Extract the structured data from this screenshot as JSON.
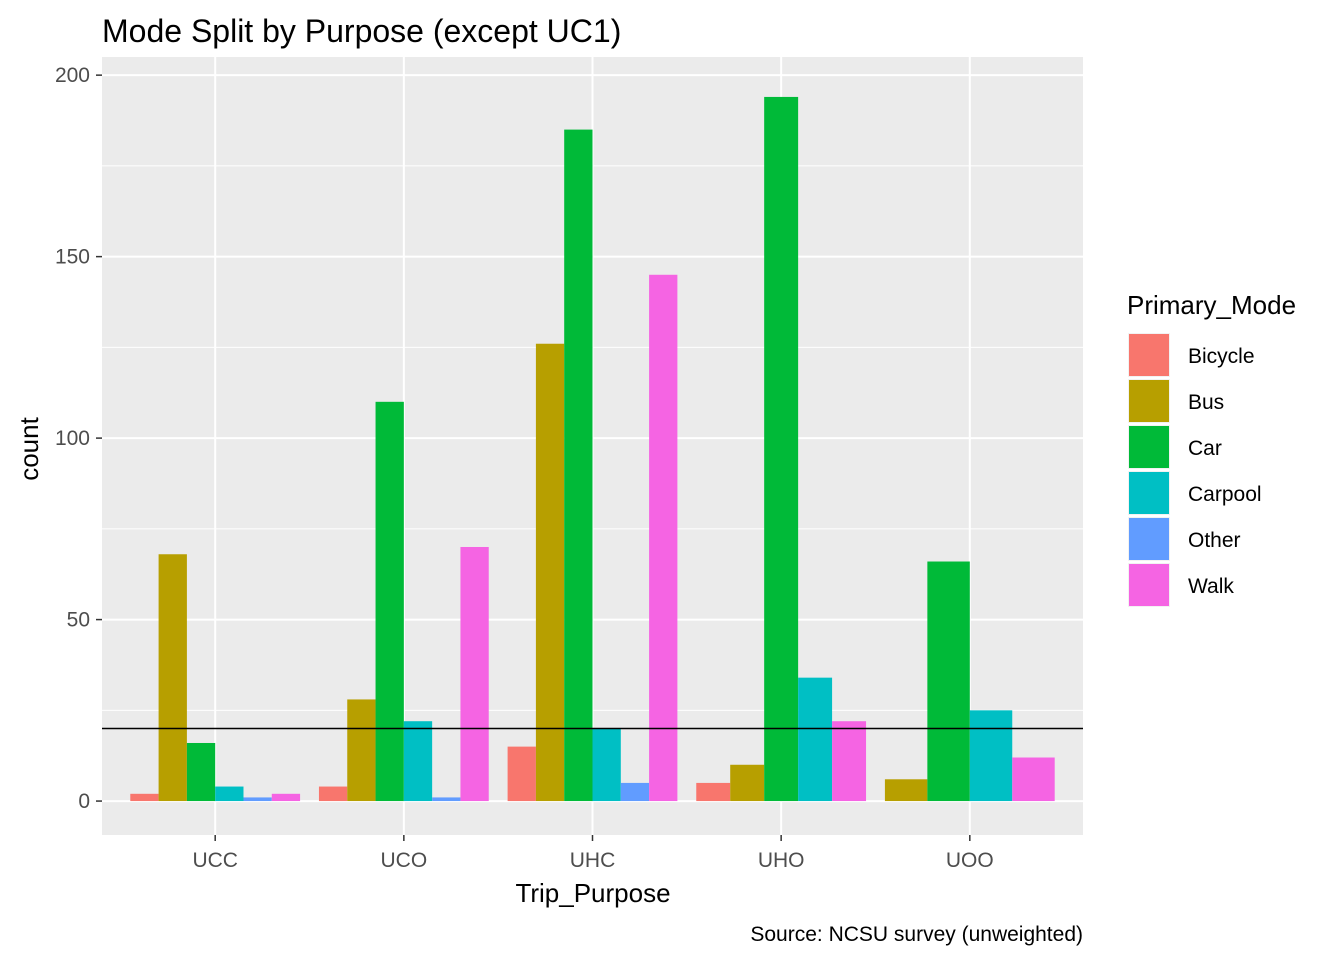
{
  "chart_data": {
    "type": "bar",
    "title": "Mode Split by Purpose (except UC1)",
    "xlabel": "Trip_Purpose",
    "ylabel": "count",
    "caption": "Source: NCSU survey (unweighted)",
    "categories": [
      "UCC",
      "UCO",
      "UHC",
      "UHO",
      "UOO"
    ],
    "y_ticks": [
      0,
      50,
      100,
      150,
      200
    ],
    "ylim": [
      -9.35,
      205
    ],
    "grid": true,
    "reference_line_y": 20,
    "legend": {
      "title": "Primary_Mode",
      "position": "right"
    },
    "series": [
      {
        "name": "Bicycle",
        "color": "#F8766D",
        "values": [
          2,
          4,
          15,
          5,
          0
        ]
      },
      {
        "name": "Bus",
        "color": "#B79F00",
        "values": [
          68,
          28,
          126,
          10,
          6
        ]
      },
      {
        "name": "Car",
        "color": "#00BA38",
        "values": [
          16,
          110,
          185,
          194,
          66
        ]
      },
      {
        "name": "Carpool",
        "color": "#00BFC4",
        "values": [
          4,
          22,
          20,
          34,
          25
        ]
      },
      {
        "name": "Other",
        "color": "#619CFF",
        "values": [
          1,
          1,
          5,
          0,
          0
        ]
      },
      {
        "name": "Walk",
        "color": "#F564E3",
        "values": [
          2,
          70,
          145,
          22,
          12
        ]
      }
    ]
  }
}
